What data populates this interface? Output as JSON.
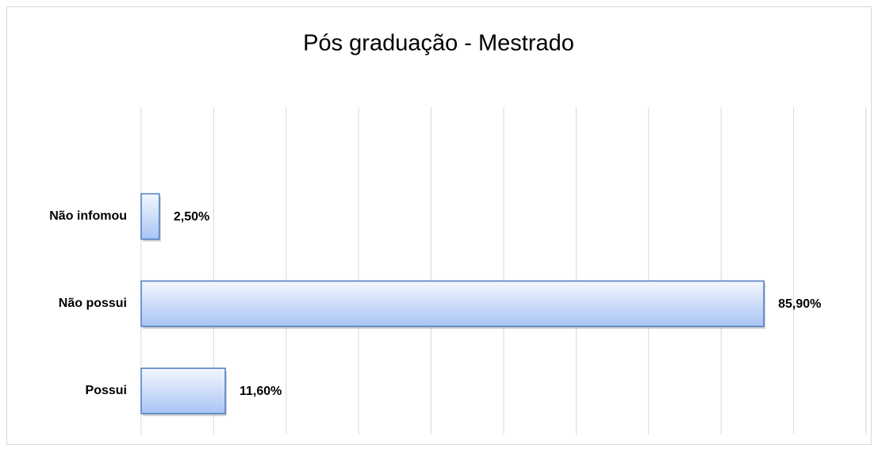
{
  "chart_data": {
    "type": "bar",
    "orientation": "horizontal",
    "title": "Pós graduação - Mestrado",
    "categories": [
      "Não infomou",
      "Não possui",
      "Possui"
    ],
    "values": [
      2.5,
      85.9,
      11.6
    ],
    "value_labels": [
      "2,50%",
      "85,90%",
      "11,60%"
    ],
    "color": "#a9c4f5",
    "xlim": [
      0,
      100
    ],
    "xticks": [
      0,
      10,
      20,
      30,
      40,
      50,
      60,
      70,
      80,
      90,
      100
    ],
    "grid": true
  }
}
